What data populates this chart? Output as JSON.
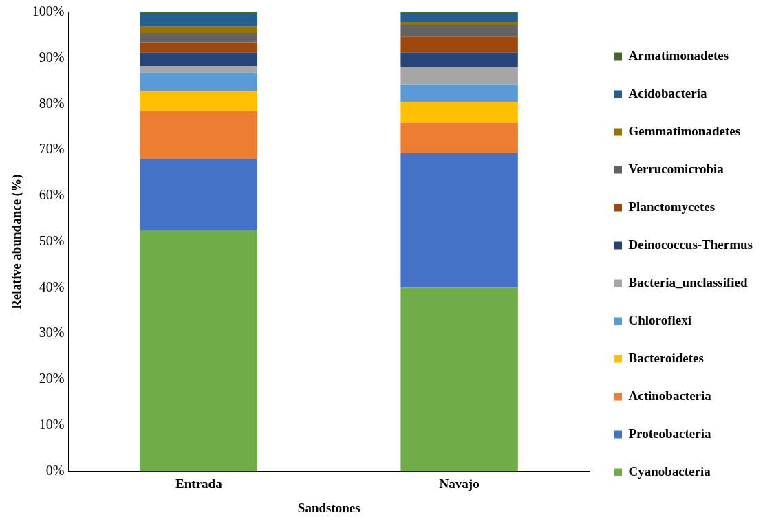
{
  "chart_data": {
    "type": "bar",
    "stacked": true,
    "xlabel": "Sandstones",
    "ylabel": "Relative abundance (%)",
    "categories": [
      "Entrada",
      "Navajo"
    ],
    "ylim": [
      0,
      100
    ],
    "yticks": [
      {
        "value": 0,
        "label": "0%"
      },
      {
        "value": 10,
        "label": "10%"
      },
      {
        "value": 20,
        "label": "20%"
      },
      {
        "value": 30,
        "label": "30%"
      },
      {
        "value": 40,
        "label": "40%"
      },
      {
        "value": 50,
        "label": "50%"
      },
      {
        "value": 60,
        "label": "60%"
      },
      {
        "value": 70,
        "label": "70%"
      },
      {
        "value": 80,
        "label": "80%"
      },
      {
        "value": 90,
        "label": "90%"
      },
      {
        "value": 100,
        "label": "100%"
      }
    ],
    "grid": false,
    "legend": "right",
    "series": [
      {
        "name": "Cyanobacteria",
        "color": "#70ad47",
        "values": [
          52.5,
          40.0
        ]
      },
      {
        "name": "Proteobacteria",
        "color": "#4472c4",
        "values": [
          15.6,
          29.3
        ]
      },
      {
        "name": "Actinobacteria",
        "color": "#ed7d31",
        "values": [
          10.4,
          6.6
        ]
      },
      {
        "name": "Bacteroidetes",
        "color": "#ffc000",
        "values": [
          4.4,
          4.6
        ]
      },
      {
        "name": "Chloroflexi",
        "color": "#5b9bd5",
        "values": [
          4.0,
          3.8
        ]
      },
      {
        "name": "Bacteria_unclassified",
        "color": "#a5a5a5",
        "values": [
          1.4,
          3.8
        ]
      },
      {
        "name": "Deinococcus-Thermus",
        "color": "#264478",
        "values": [
          2.9,
          3.1
        ]
      },
      {
        "name": "Planctomycetes",
        "color": "#9e480e",
        "values": [
          2.3,
          3.5
        ]
      },
      {
        "name": "Verrucomicrobia",
        "color": "#636363",
        "values": [
          2.0,
          2.6
        ]
      },
      {
        "name": "Gemmatimonadetes",
        "color": "#997300",
        "values": [
          1.4,
          0.6
        ]
      },
      {
        "name": "Acidobacteria",
        "color": "#255e91",
        "values": [
          2.8,
          1.8
        ]
      },
      {
        "name": "Armatimonadetes",
        "color": "#43682b",
        "values": [
          0.3,
          0.3
        ]
      }
    ]
  }
}
